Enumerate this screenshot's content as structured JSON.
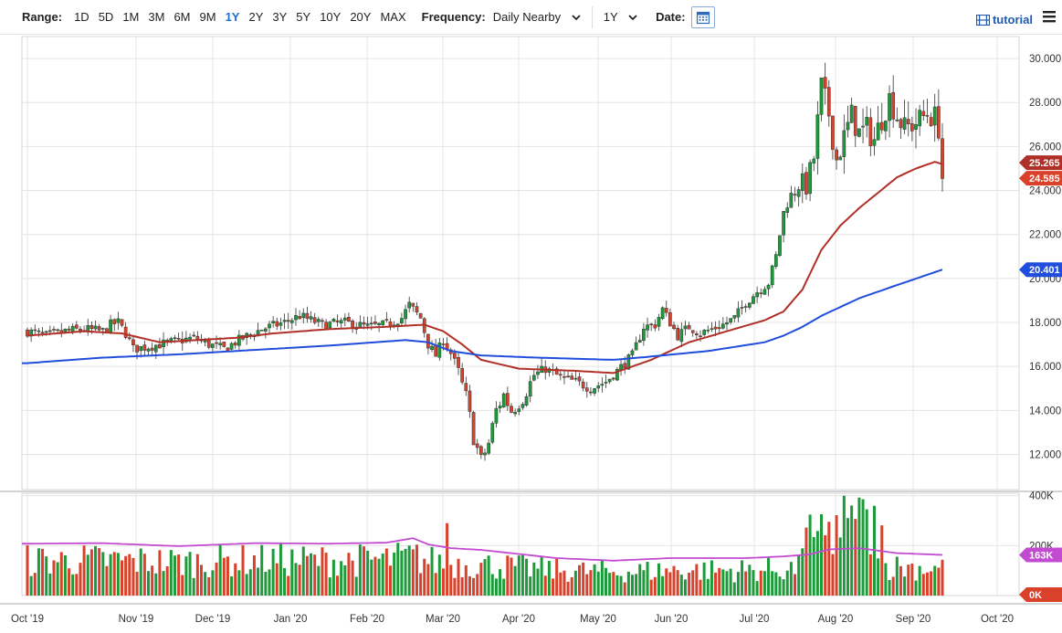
{
  "toolbar": {
    "range_label": "Range:",
    "ranges": [
      "1D",
      "5D",
      "1M",
      "3M",
      "6M",
      "9M",
      "1Y",
      "2Y",
      "3Y",
      "5Y",
      "10Y",
      "20Y",
      "MAX"
    ],
    "active_range": "1Y",
    "frequency_label": "Frequency:",
    "frequency_value": "Daily Nearby",
    "period_value": "1Y",
    "date_label": "Date:",
    "tutorial_label": "tutorial"
  },
  "colors": {
    "up": "#1d9a3a",
    "down": "#d9412b",
    "ma_short": "#b03028",
    "ma_long": "#1f4ddc",
    "volume_ma": "#c24bd1",
    "active_range": "#1d6fd6"
  },
  "chart_data": {
    "type": "candlestick",
    "price_axis": {
      "ticks": [
        "12.000",
        "14.000",
        "16.000",
        "18.000",
        "20.000",
        "22.000",
        "24.000",
        "26.000",
        "28.000",
        "30.000"
      ],
      "ylim": [
        10.4,
        31.0
      ]
    },
    "volume_axis": {
      "ticks": [
        "0K",
        "200K",
        "400K"
      ],
      "ylim": [
        0,
        410000
      ]
    },
    "x_labels": [
      "Oct '19",
      "Nov '19",
      "Dec '19",
      "Jan '20",
      "Feb '20",
      "Mar '20",
      "Apr '20",
      "May '20",
      "Jun '20",
      "Jul '20",
      "Aug '20",
      "Sep '20",
      "Oct '20"
    ],
    "price_path": [
      [
        0,
        17.6
      ],
      [
        5,
        17.4
      ],
      [
        10,
        17.6
      ],
      [
        15,
        17.7
      ],
      [
        20,
        17.6
      ],
      [
        22,
        17.9
      ],
      [
        24,
        18.0
      ],
      [
        26,
        17.5
      ],
      [
        28,
        16.8
      ],
      [
        32,
        16.9
      ],
      [
        38,
        17.1
      ],
      [
        44,
        17.3
      ],
      [
        48,
        17.0
      ],
      [
        52,
        16.8
      ],
      [
        56,
        17.2
      ],
      [
        62,
        17.7
      ],
      [
        68,
        18.0
      ],
      [
        72,
        18.3
      ],
      [
        78,
        17.9
      ],
      [
        84,
        18.0
      ],
      [
        90,
        17.8
      ],
      [
        95,
        17.9
      ],
      [
        99,
        18.2
      ],
      [
        101,
        18.8
      ],
      [
        104,
        18.2
      ],
      [
        106,
        17.0
      ],
      [
        108,
        16.5
      ],
      [
        110,
        17.2
      ],
      [
        112,
        16.6
      ],
      [
        114,
        15.8
      ],
      [
        116,
        14.6
      ],
      [
        118,
        12.8
      ],
      [
        120,
        11.7
      ],
      [
        122,
        12.5
      ],
      [
        124,
        14.0
      ],
      [
        126,
        14.7
      ],
      [
        128,
        14.0
      ],
      [
        131,
        14.6
      ],
      [
        134,
        15.6
      ],
      [
        137,
        15.9
      ],
      [
        141,
        15.5
      ],
      [
        145,
        15.3
      ],
      [
        149,
        15.0
      ],
      [
        153,
        15.3
      ],
      [
        156,
        15.8
      ],
      [
        160,
        16.5
      ],
      [
        163,
        17.8
      ],
      [
        166,
        17.9
      ],
      [
        168,
        18.6
      ],
      [
        170,
        18.0
      ],
      [
        172,
        17.4
      ],
      [
        175,
        17.8
      ],
      [
        178,
        17.5
      ],
      [
        181,
        17.7
      ],
      [
        184,
        17.9
      ],
      [
        187,
        18.2
      ],
      [
        190,
        18.9
      ],
      [
        193,
        19.4
      ],
      [
        196,
        19.8
      ],
      [
        198,
        21.0
      ],
      [
        200,
        23.0
      ],
      [
        202,
        23.8
      ],
      [
        204,
        24.4
      ],
      [
        206,
        24.0
      ],
      [
        208,
        25.5
      ],
      [
        210,
        28.7
      ],
      [
        212,
        27.5
      ],
      [
        214,
        25.4
      ],
      [
        216,
        26.4
      ],
      [
        218,
        27.4
      ],
      [
        220,
        26.6
      ],
      [
        222,
        26.8
      ],
      [
        224,
        26.3
      ],
      [
        226,
        27.3
      ],
      [
        228,
        28.2
      ],
      [
        230,
        27.4
      ],
      [
        232,
        26.8
      ],
      [
        234,
        27.0
      ],
      [
        236,
        27.2
      ],
      [
        238,
        27.5
      ],
      [
        240,
        27.3
      ],
      [
        241,
        26.9
      ],
      [
        242,
        24.6
      ]
    ],
    "ma_short_path": [
      [
        0,
        17.4
      ],
      [
        15,
        17.6
      ],
      [
        25,
        17.5
      ],
      [
        35,
        17.1
      ],
      [
        45,
        17.2
      ],
      [
        55,
        17.3
      ],
      [
        65,
        17.5
      ],
      [
        80,
        17.7
      ],
      [
        95,
        17.8
      ],
      [
        105,
        17.9
      ],
      [
        110,
        17.6
      ],
      [
        115,
        17.0
      ],
      [
        120,
        16.3
      ],
      [
        130,
        15.9
      ],
      [
        145,
        15.8
      ],
      [
        155,
        15.7
      ],
      [
        165,
        16.3
      ],
      [
        175,
        17.1
      ],
      [
        185,
        17.6
      ],
      [
        195,
        18.1
      ],
      [
        200,
        18.5
      ],
      [
        205,
        19.5
      ],
      [
        210,
        21.3
      ],
      [
        215,
        22.4
      ],
      [
        220,
        23.2
      ],
      [
        225,
        23.9
      ],
      [
        230,
        24.6
      ],
      [
        235,
        25.0
      ],
      [
        240,
        25.3
      ],
      [
        242,
        25.2
      ]
    ],
    "ma_long_path": [
      [
        0,
        16.15
      ],
      [
        20,
        16.4
      ],
      [
        40,
        16.55
      ],
      [
        60,
        16.75
      ],
      [
        80,
        16.95
      ],
      [
        100,
        17.2
      ],
      [
        106,
        17.1
      ],
      [
        112,
        16.7
      ],
      [
        120,
        16.5
      ],
      [
        135,
        16.4
      ],
      [
        155,
        16.3
      ],
      [
        165,
        16.45
      ],
      [
        180,
        16.7
      ],
      [
        195,
        17.1
      ],
      [
        200,
        17.4
      ],
      [
        205,
        17.8
      ],
      [
        210,
        18.3
      ],
      [
        220,
        19.1
      ],
      [
        230,
        19.7
      ],
      [
        242,
        20.4
      ]
    ],
    "volume_ma_path": [
      [
        0,
        208000
      ],
      [
        20,
        210000
      ],
      [
        40,
        198000
      ],
      [
        60,
        210000
      ],
      [
        80,
        208000
      ],
      [
        95,
        212000
      ],
      [
        102,
        230000
      ],
      [
        106,
        205000
      ],
      [
        112,
        190000
      ],
      [
        120,
        183000
      ],
      [
        140,
        150000
      ],
      [
        155,
        140000
      ],
      [
        170,
        150000
      ],
      [
        190,
        150000
      ],
      [
        200,
        157000
      ],
      [
        207,
        165000
      ],
      [
        212,
        185000
      ],
      [
        220,
        190000
      ],
      [
        230,
        170000
      ],
      [
        242,
        163000
      ]
    ],
    "value_tags": [
      {
        "label": "25.265",
        "value": 25.265,
        "color": "#b03028"
      },
      {
        "label": "24.585",
        "value": 24.585,
        "color": "#d9412b"
      },
      {
        "label": "20.401",
        "value": 20.401,
        "color": "#1f4ddc"
      }
    ],
    "volume_tags": [
      {
        "label": "163K",
        "value": 163000,
        "color": "#c24bd1"
      },
      {
        "label": "0K",
        "value": 0,
        "color": "#d9412b"
      }
    ]
  }
}
